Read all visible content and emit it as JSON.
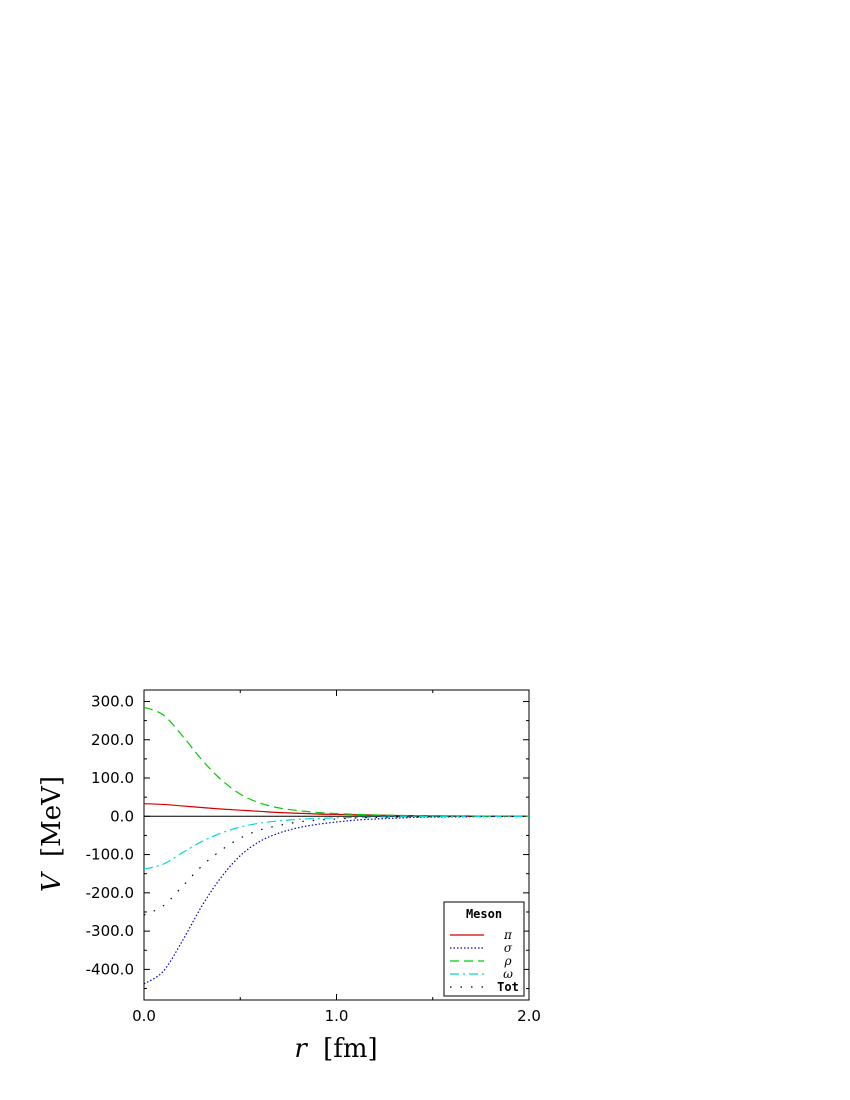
{
  "chart_data": {
    "type": "line",
    "xlabel_var": "r",
    "xlabel_unit": "[fm]",
    "ylabel_var": "V",
    "ylabel_unit": "[MeV]",
    "xlim": [
      0.0,
      2.0
    ],
    "ylim": [
      -480,
      330
    ],
    "xticks": [
      0.0,
      1.0,
      2.0
    ],
    "xtick_labels": [
      "0.0",
      "1.0",
      "2.0"
    ],
    "yticks": [
      300,
      200,
      100,
      0,
      -100,
      -200,
      -300,
      -400
    ],
    "ytick_labels": [
      "300.0",
      "200.0",
      "100.0",
      "0.0",
      "-100.0",
      "-200.0",
      "-300.0",
      "-400.0"
    ],
    "legend_title": "Meson",
    "legend_position": "bottom-right",
    "grid": false,
    "x": [
      0.0,
      0.1,
      0.2,
      0.3,
      0.4,
      0.5,
      0.6,
      0.7,
      0.8,
      0.9,
      1.0,
      1.1,
      1.2,
      1.3,
      1.4,
      1.5,
      1.6,
      1.7,
      1.8,
      1.9,
      2.0
    ],
    "series": [
      {
        "name": "π",
        "color": "#d40000",
        "style": "solid",
        "values": [
          33,
          31,
          27,
          23,
          19,
          16,
          13,
          10,
          8,
          6,
          5,
          4,
          3,
          2.3,
          1.7,
          1.2,
          0.9,
          0.7,
          0.5,
          0.4,
          0.3
        ]
      },
      {
        "name": "σ",
        "color": "#0000cc",
        "style": "dotted",
        "values": [
          -438,
          -405,
          -325,
          -235,
          -160,
          -103,
          -66,
          -44,
          -30,
          -21,
          -15,
          -10,
          -7,
          -5,
          -3,
          -2,
          -1.5,
          -1,
          -0.6,
          -0.4,
          -0.3
        ]
      },
      {
        "name": "ρ",
        "color": "#00cc00",
        "style": "dashed",
        "values": [
          285,
          265,
          210,
          148,
          96,
          58,
          35,
          22,
          15,
          10,
          7,
          5,
          3.5,
          2.5,
          1.8,
          1.2,
          0.8,
          0.6,
          0.4,
          0.3,
          0.2
        ]
      },
      {
        "name": "ω",
        "color": "#00d8d8",
        "style": "dashdot",
        "values": [
          -138,
          -125,
          -95,
          -66,
          -44,
          -28,
          -18,
          -12,
          -8,
          -5.5,
          -4,
          -3,
          -2,
          -1.4,
          -1,
          -0.7,
          -0.5,
          -0.3,
          -0.2,
          -0.15,
          -0.1
        ]
      },
      {
        "name": "Tot",
        "color": "#000000",
        "style": "sparse-dot",
        "values": [
          -258,
          -234,
          -183,
          -130,
          -89,
          -57,
          -36,
          -24,
          -15,
          -10,
          -7,
          -4.5,
          -3,
          -2,
          -1.3,
          -0.9,
          -0.6,
          -0.4,
          -0.3,
          -0.2,
          -0.1
        ]
      }
    ]
  }
}
